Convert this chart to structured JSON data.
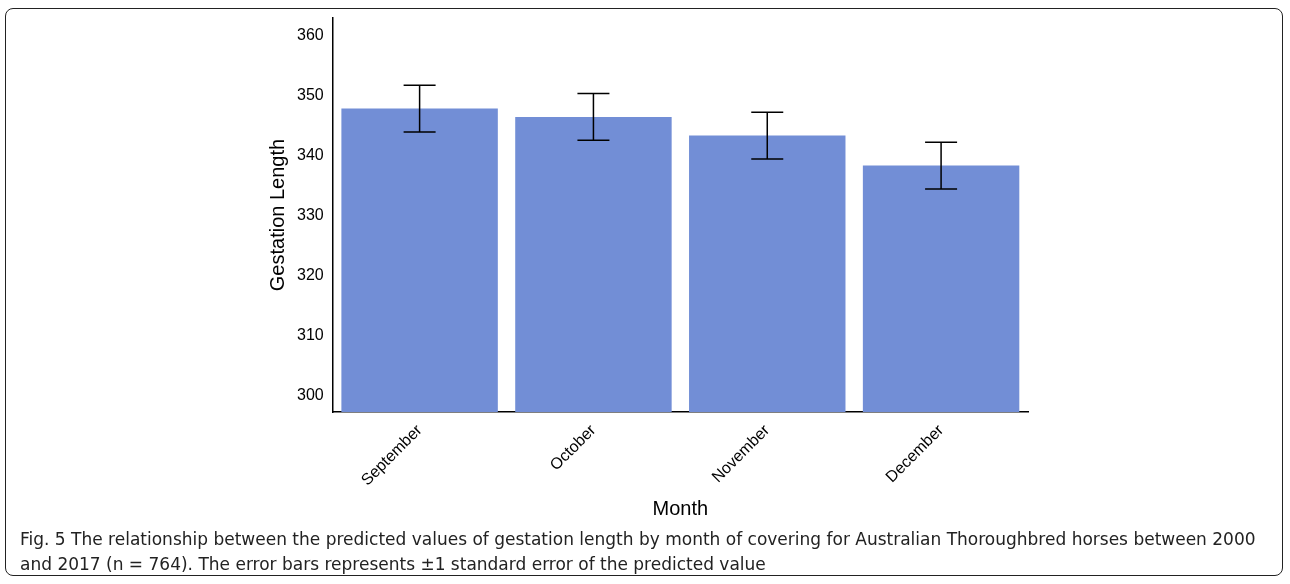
{
  "chart_data": {
    "type": "bar",
    "xlabel": "Month",
    "ylabel": "Gestation Length",
    "categories": [
      "September",
      "October",
      "November",
      "December"
    ],
    "values": [
      347.8,
      346.4,
      343.3,
      338.3
    ],
    "errors": [
      3.9,
      3.9,
      3.9,
      3.9
    ],
    "color": "#728ed6",
    "ylim": [
      297.2,
      362.9
    ],
    "yticks": [
      300,
      310,
      320,
      330,
      340,
      350,
      360
    ],
    "grid": false,
    "legend": false,
    "annotations": [
      "Fig. 5 The relationship between the predicted values of gestation length by month of covering for Australian Thoroughbred horses between 2000 and 2017 (n = 764). The error bars represents ±1 standard error of the predicted value"
    ]
  }
}
